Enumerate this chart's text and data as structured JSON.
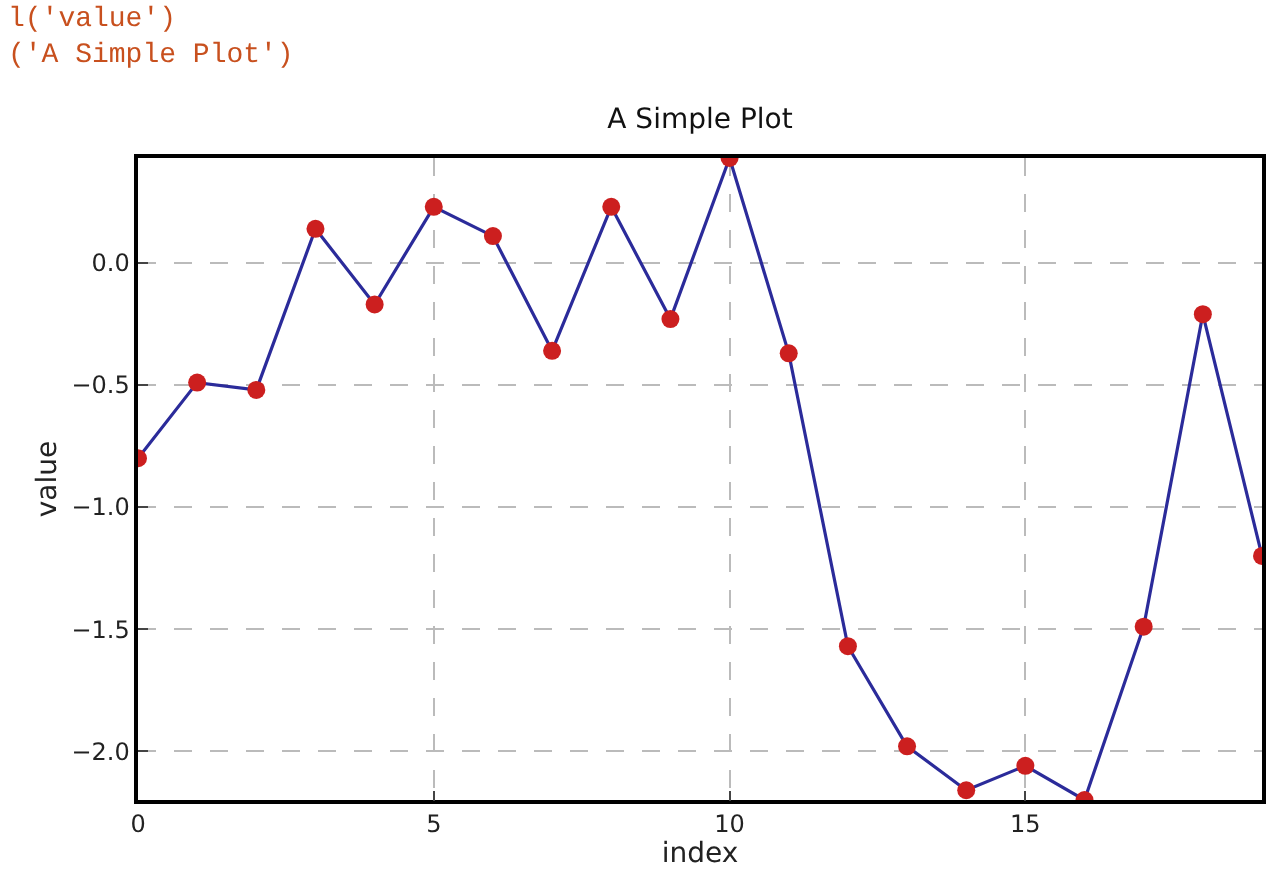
{
  "chart_data": {
    "type": "line",
    "title": "A Simple Plot",
    "xlabel": "index",
    "ylabel": "value",
    "annotations": [
      "l('value')",
      "('A Simple Plot')"
    ],
    "x": [
      0,
      1,
      2,
      3,
      4,
      5,
      6,
      7,
      8,
      9,
      10,
      11,
      12,
      13,
      14,
      15,
      16,
      17,
      18,
      19
    ],
    "series": [
      {
        "color": "#2b2b9a",
        "colors": [
          "#cc1f1f",
          "#cc1f1f",
          "#cc1f1f",
          "#cc1f1f",
          "#cc1f1f",
          "#cc1f1f",
          "#cc1f1f",
          "#cc1f1f",
          "#cc1f1f",
          "#cc1f1f",
          "#cc1f1f",
          "#cc1f1f",
          "#cc1f1f",
          "#cc1f1f",
          "#cc1f1f",
          "#cc1f1f",
          "#cc1f1f",
          "#cc1f1f",
          "#cc1f1f",
          "#cc1f1f"
        ],
        "values": [
          -0.8,
          -0.49,
          -0.52,
          0.14,
          -0.17,
          0.23,
          0.11,
          -0.36,
          0.23,
          -0.23,
          0.43,
          -0.37,
          -1.57,
          -1.98,
          -2.16,
          -2.06,
          -2.2,
          -1.49,
          -0.21,
          -1.2
        ]
      }
    ],
    "xlim": [
      0,
      19
    ],
    "xticks": [
      0,
      5,
      10,
      15
    ],
    "ylim": [
      -2.2,
      0.43
    ],
    "yticks": [
      {
        "value": -2,
        "label": "−2.0"
      },
      {
        "value": -1.5,
        "label": "−1.5"
      },
      {
        "value": -1,
        "label": "−1.0"
      },
      {
        "value": -0.5,
        "label": "−0.5"
      },
      {
        "value": 0,
        "label": "0.0"
      }
    ],
    "grid": true,
    "marker": "circle",
    "line_style": "solid"
  }
}
